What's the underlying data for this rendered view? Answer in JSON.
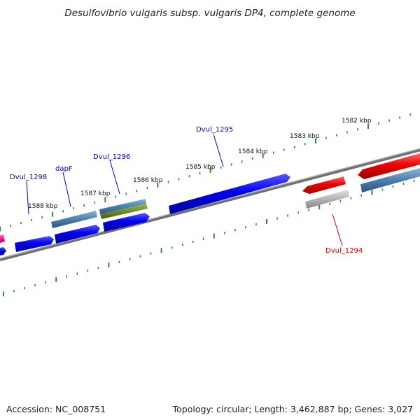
{
  "title": "Desulfovibrio vulgaris subsp. vulgaris DP4, complete genome",
  "footer": {
    "accession": "Accession: NC_008751",
    "summary": "Topology: circular; Length: 3,462,887 bp; Genes: 3,027"
  },
  "kbp_labels": [
    "1582 kbp",
    "1583 kbp",
    "1584 kbp",
    "1585 kbp",
    "1586 kbp",
    "1587 kbp",
    "1588 kbp"
  ],
  "gene_labels": {
    "dvul_1298": "Dvul_1298",
    "dapf": "dapF",
    "dvul_1296": "Dvul_1296",
    "dvul_1295": "Dvul_1295",
    "dvul_1294": "Dvul_1294"
  },
  "colors": {
    "forward_gene": "#0000ff",
    "reverse_gene": "#ff0000",
    "cds_feature": "#4a82b4",
    "rna_feature": "#6b8e23",
    "pseudo_feature": "#b0b0b0",
    "other_feature": "#ff1493",
    "backbone": "#808080",
    "tick": "#2e8b2e",
    "forward_label": "#0000cc",
    "reverse_label": "#cc0000"
  }
}
